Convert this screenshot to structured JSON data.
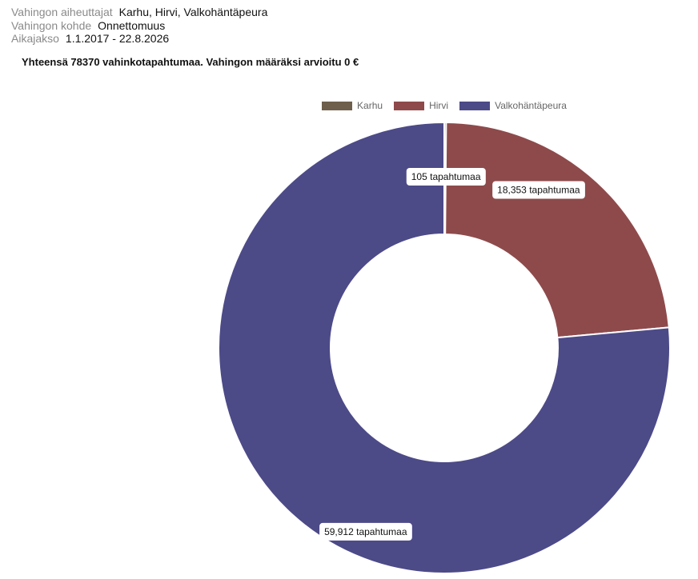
{
  "filters": [
    {
      "label": "Vahingon aiheuttajat",
      "value": "Karhu, Hirvi, Valkohäntäpeura"
    },
    {
      "label": "Vahingon kohde",
      "value": "Onnettomuus"
    },
    {
      "label": "Aikajakso",
      "value": "1.1.2017 - 22.8.2026"
    }
  ],
  "summary": "Yhteensä 78370 vahinkotapahtumaa. Vahingon määräksi arvioitu 0 €",
  "chart_data": {
    "type": "pie",
    "donut": true,
    "legend_position": "top",
    "series": [
      {
        "name": "Karhu",
        "value": 105,
        "label": "105 tapahtumaa",
        "color": "#6e5f4c"
      },
      {
        "name": "Hirvi",
        "value": 18353,
        "label": "18,353 tapahtumaa",
        "color": "#8e4a4b"
      },
      {
        "name": "Valkohäntäpeura",
        "value": 59912,
        "label": "59,912 tapahtumaa",
        "color": "#4c4a87"
      }
    ]
  }
}
